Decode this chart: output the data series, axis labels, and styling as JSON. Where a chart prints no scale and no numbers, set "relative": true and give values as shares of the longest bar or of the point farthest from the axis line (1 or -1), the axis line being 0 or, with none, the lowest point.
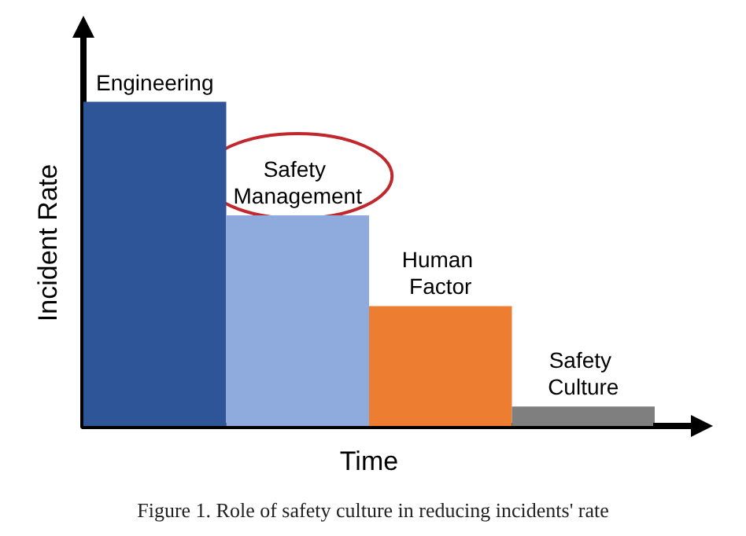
{
  "chart_data": {
    "type": "bar",
    "relative": true,
    "xlabel": "Time",
    "ylabel": "Incident Rate",
    "categories": [
      "Engineering",
      "Safety Management",
      "Human Factor",
      "Safety Culture"
    ],
    "values": [
      1,
      0.65,
      0.37,
      0.06
    ],
    "colors": [
      "#2e5597",
      "#8faadc",
      "#ed7d31",
      "#7f7f7f"
    ],
    "annotations": [
      "Figure 1. Role of safety culture in reducing incidents' rate"
    ],
    "grid": false
  }
}
